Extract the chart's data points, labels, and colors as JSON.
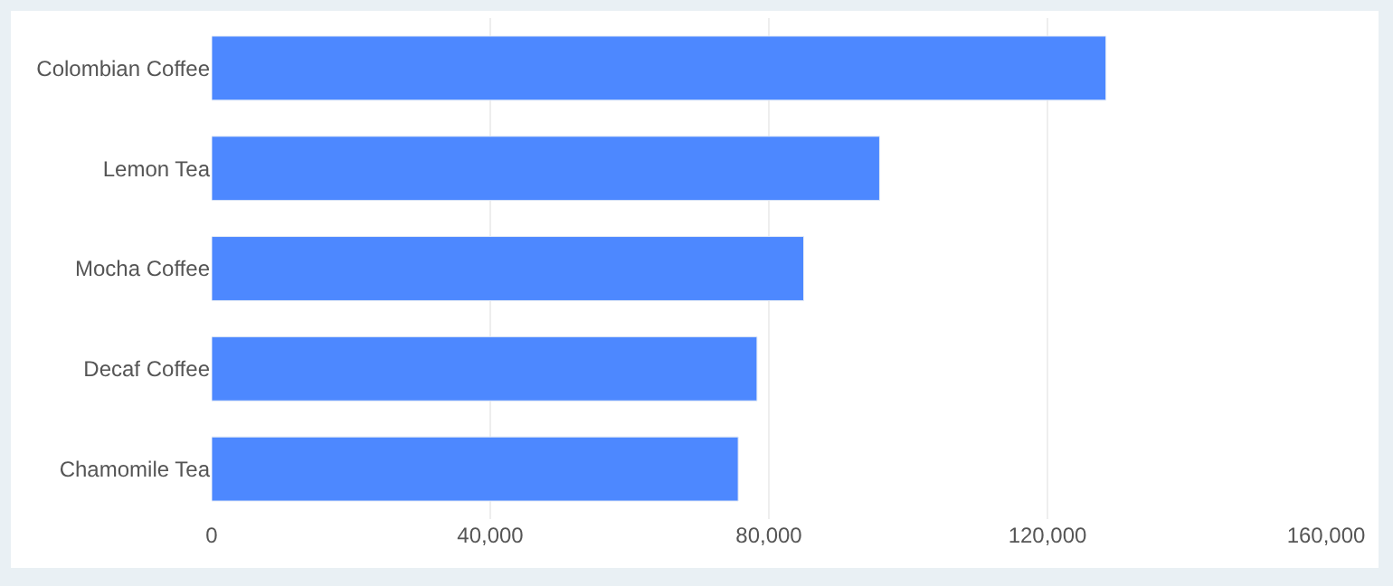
{
  "chart_data": {
    "type": "bar",
    "orientation": "horizontal",
    "categories": [
      "Colombian Coffee",
      "Lemon Tea",
      "Mocha Coffee",
      "Decaf Coffee",
      "Chamomile Tea"
    ],
    "values": [
      128400,
      95900,
      85000,
      78300,
      75600
    ],
    "color": "#4d88ff",
    "xlim": [
      0,
      160000
    ],
    "xticks": [
      {
        "value": 0,
        "label": "0"
      },
      {
        "value": 40000,
        "label": "40,000"
      },
      {
        "value": 80000,
        "label": "80,000"
      },
      {
        "value": 120000,
        "label": "120,000"
      },
      {
        "value": 160000,
        "label": "160,000"
      }
    ],
    "grid": "x",
    "legend": false
  }
}
